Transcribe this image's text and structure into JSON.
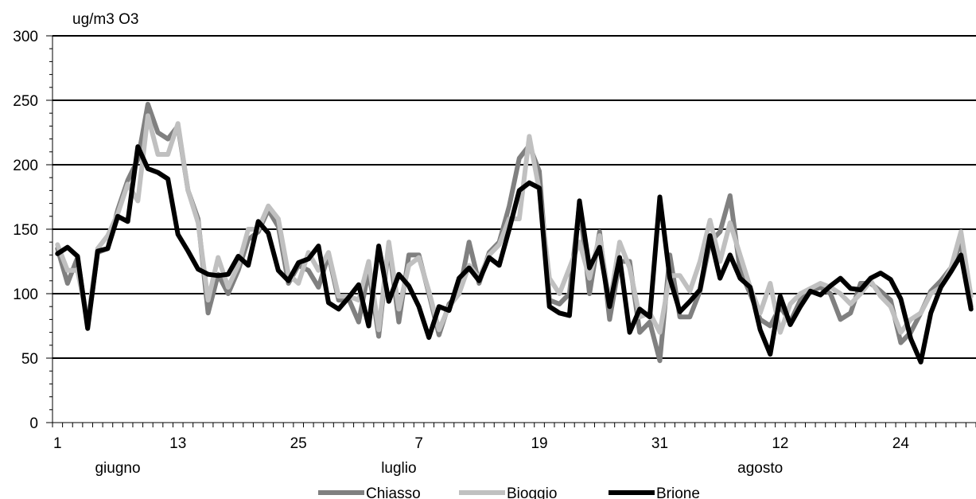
{
  "chart_data": {
    "type": "line",
    "unit_label": "ug/m3 O3",
    "ylim": [
      0,
      300
    ],
    "y_major_ticks": [
      0,
      50,
      100,
      150,
      200,
      250,
      300
    ],
    "y_minor_step": 10,
    "grid": "horizontal-major",
    "x_count": 92,
    "x_tick_labels": [
      {
        "index": 0,
        "label": "1"
      },
      {
        "index": 12,
        "label": "13"
      },
      {
        "index": 24,
        "label": "25"
      },
      {
        "index": 36,
        "label": "7"
      },
      {
        "index": 48,
        "label": "19"
      },
      {
        "index": 60,
        "label": "31"
      },
      {
        "index": 72,
        "label": "12"
      },
      {
        "index": 84,
        "label": "24"
      }
    ],
    "months": [
      {
        "label": "giugno",
        "index": 6
      },
      {
        "label": "luglio",
        "index": 34
      },
      {
        "label": "agosto",
        "index": 70
      }
    ],
    "legend_position": "bottom",
    "series": [
      {
        "name": "Chiasso",
        "color": "#808080",
        "width": 6,
        "values": [
          135,
          108,
          128,
          75,
          132,
          135,
          165,
          188,
          204,
          247,
          225,
          220,
          230,
          180,
          158,
          85,
          115,
          100,
          118,
          142,
          148,
          165,
          152,
          108,
          122,
          118,
          105,
          130,
          95,
          96,
          78,
          118,
          67,
          138,
          78,
          130,
          130,
          100,
          68,
          92,
          100,
          140,
          108,
          132,
          140,
          168,
          205,
          215,
          195,
          95,
          92,
          100,
          170,
          100,
          148,
          80,
          125,
          125,
          70,
          78,
          48,
          130,
          82,
          82,
          102,
          140,
          148,
          176,
          118,
          100,
          80,
          75,
          90,
          78,
          95,
          102,
          105,
          100,
          80,
          85,
          108,
          108,
          102,
          95,
          62,
          70,
          85,
          102,
          110,
          120,
          140,
          90
        ]
      },
      {
        "name": "Bioggio",
        "color": "#c0c0c0",
        "width": 6,
        "values": [
          138,
          118,
          118,
          78,
          135,
          145,
          162,
          185,
          172,
          238,
          208,
          208,
          232,
          180,
          155,
          95,
          128,
          105,
          122,
          150,
          150,
          168,
          158,
          115,
          108,
          132,
          118,
          132,
          98,
          98,
          95,
          125,
          72,
          140,
          88,
          122,
          128,
          102,
          72,
          90,
          100,
          122,
          112,
          130,
          138,
          158,
          158,
          222,
          180,
          112,
          100,
          120,
          140,
          112,
          145,
          92,
          140,
          120,
          82,
          85,
          70,
          114,
          114,
          102,
          125,
          157,
          125,
          155,
          130,
          105,
          85,
          108,
          70,
          92,
          100,
          104,
          108,
          105,
          100,
          92,
          100,
          110,
          98,
          90,
          70,
          80,
          85,
          100,
          105,
          120,
          148,
          98
        ]
      },
      {
        "name": "Brione",
        "color": "#000000",
        "width": 6,
        "values": [
          131,
          136,
          129,
          73,
          133,
          135,
          160,
          156,
          214,
          197,
          194,
          189,
          146,
          133,
          119,
          115,
          114,
          115,
          129,
          122,
          156,
          147,
          118,
          110,
          124,
          127,
          137,
          93,
          88,
          97,
          107,
          75,
          137,
          94,
          115,
          106,
          90,
          66,
          90,
          87,
          112,
          120,
          110,
          128,
          122,
          150,
          180,
          186,
          182,
          90,
          85,
          83,
          172,
          120,
          136,
          90,
          128,
          70,
          88,
          82,
          175,
          112,
          86,
          94,
          103,
          145,
          112,
          130,
          112,
          105,
          72,
          53,
          98,
          76,
          90,
          102,
          99,
          106,
          112,
          104,
          103,
          112,
          116,
          111,
          96,
          65,
          47,
          85,
          105,
          117,
          130,
          88
        ]
      }
    ]
  }
}
